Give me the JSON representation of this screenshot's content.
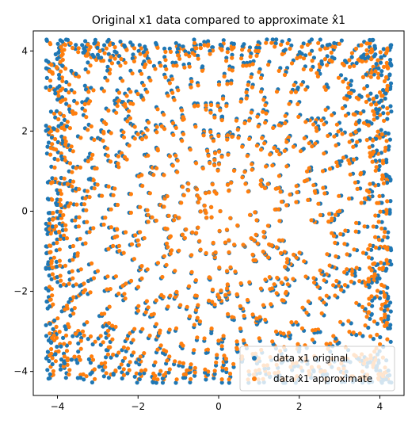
{
  "chart_data": {
    "type": "scatter",
    "title": "Original x1 data compared to approximate x̂1",
    "xlabel": "",
    "ylabel": "",
    "xlim": [
      -4.6,
      4.6
    ],
    "ylim": [
      -4.6,
      4.5
    ],
    "xticks": [
      -4,
      -2,
      0,
      2,
      4
    ],
    "yticks": [
      -4,
      -2,
      0,
      2,
      4
    ],
    "xtick_labels": [
      "−4",
      "−2",
      "0",
      "2",
      "4"
    ],
    "ytick_labels": [
      "−4",
      "−2",
      "0",
      "2",
      "4"
    ],
    "grid": false,
    "legend_position": "lower-right",
    "point_count_estimate": 1500,
    "distribution_note": "",
    "series": [
      {
        "name": "data x1 original",
        "color": "#1f77b4",
        "marker": "circle"
      },
      {
        "name": "data x̂1 approximate",
        "color": "#ff7f0e",
        "marker": "circle"
      }
    ]
  },
  "colors": {
    "original": "#1f77b4",
    "approximate": "#ff7f0e",
    "axis": "#000000",
    "background": "#ffffff"
  }
}
